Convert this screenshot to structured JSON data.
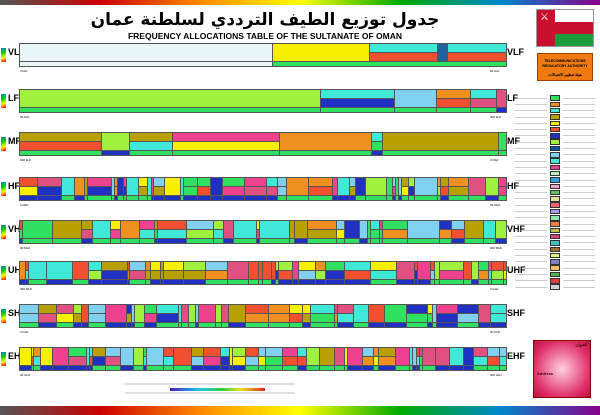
{
  "header": {
    "title_ar": "جدول توزيع الطيف الترددي لسلطنة عمان",
    "title_en": "FREQUENCY ALLOCATIONS TABLE OF THE SULTANATE OF OMAN"
  },
  "authority": {
    "name_en": "TELECOMMUNICATIONS REGULATORY AUTHORITY",
    "name_ar": "هيئة تنظيم الاتصالات"
  },
  "bands": [
    {
      "name": "VLF",
      "start": "3 kHz",
      "end": "30 kHz"
    },
    {
      "name": "LF",
      "start": "30 kHz",
      "end": "300 kHz"
    },
    {
      "name": "MF",
      "start": "300 kHz",
      "end": "3 MHz"
    },
    {
      "name": "HF",
      "start": "3 MHz",
      "end": "30 MHz"
    },
    {
      "name": "VHF",
      "start": "30 MHz",
      "end": "300 MHz"
    },
    {
      "name": "UHF",
      "start": "300 MHz",
      "end": "3 GHz"
    },
    {
      "name": "SHF",
      "start": "3 GHz",
      "end": "30 GHz"
    },
    {
      "name": "EHF",
      "start": "30 GHz",
      "end": "300 GHz"
    }
  ],
  "info": {
    "heading_ar": "العنوان",
    "heading_en": "Address"
  },
  "colors": {
    "legend": [
      "#30e060",
      "#f09020",
      "#40e8d8",
      "#b8a000",
      "#f8f000",
      "#f05030",
      "#2030c0",
      "#a0f040",
      "#1050a0",
      "#80d0f0",
      "#40e8d8",
      "#f04090",
      "#c0f0c0",
      "#30a0e0",
      "#f0a0c0",
      "#60c060",
      "#e0e0a0",
      "#f06070",
      "#a0a0f0",
      "#90e8b0",
      "#f08040",
      "#c0c040",
      "#d04080",
      "#40c0c0",
      "#a07030",
      "#e0f080",
      "#8080c0",
      "#f0c060",
      "#50b050",
      "#e04040",
      "#d0d0d0"
    ]
  }
}
